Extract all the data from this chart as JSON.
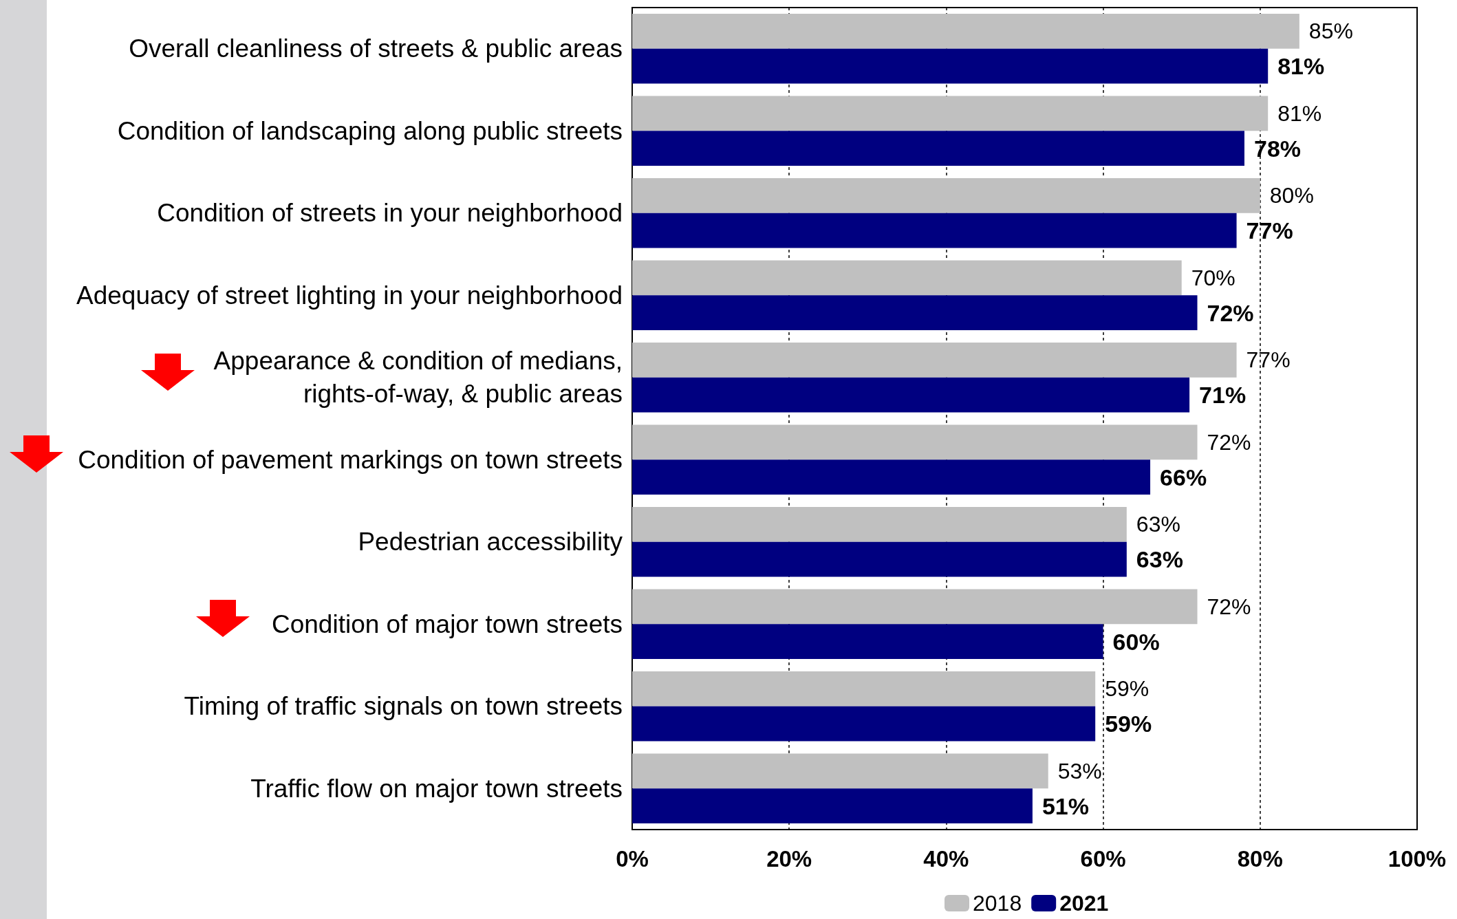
{
  "chart_data": {
    "type": "bar",
    "orientation": "horizontal",
    "categories": [
      "Overall cleanliness of streets & public areas",
      "Condition of landscaping along public streets",
      "Condition of streets in your neighborhood",
      "Adequacy of street lighting in your neighborhood",
      "Appearance & condition of medians,\nrights-of-way, & public areas",
      "Condition of pavement markings on town streets",
      "Pedestrian accessibility",
      "Condition of major town streets",
      "Timing of traffic signals on town streets",
      "Traffic flow on major town streets"
    ],
    "series": [
      {
        "name": "2018",
        "color": "#c0c0c0",
        "values": [
          85,
          81,
          80,
          70,
          77,
          72,
          63,
          72,
          59,
          53
        ],
        "value_labels": [
          "85%",
          "81%",
          "80%",
          "70%",
          "77%",
          "72%",
          "63%",
          "72%",
          "59%",
          "53%"
        ]
      },
      {
        "name": "2021",
        "color": "#000080",
        "values": [
          81,
          78,
          77,
          72,
          71,
          66,
          63,
          60,
          59,
          51
        ],
        "value_labels": [
          "81%",
          "78%",
          "77%",
          "72%",
          "71%",
          "66%",
          "63%",
          "60%",
          "59%",
          "51%"
        ]
      }
    ],
    "xlim": [
      0,
      100
    ],
    "xticks": [
      {
        "value": 0,
        "label": "0%"
      },
      {
        "value": 20,
        "label": "20%"
      },
      {
        "value": 40,
        "label": "40%"
      },
      {
        "value": 60,
        "label": "60%"
      },
      {
        "value": 80,
        "label": "80%"
      },
      {
        "value": 100,
        "label": "100%"
      }
    ],
    "grid": "x",
    "legend": "bottom"
  }
}
